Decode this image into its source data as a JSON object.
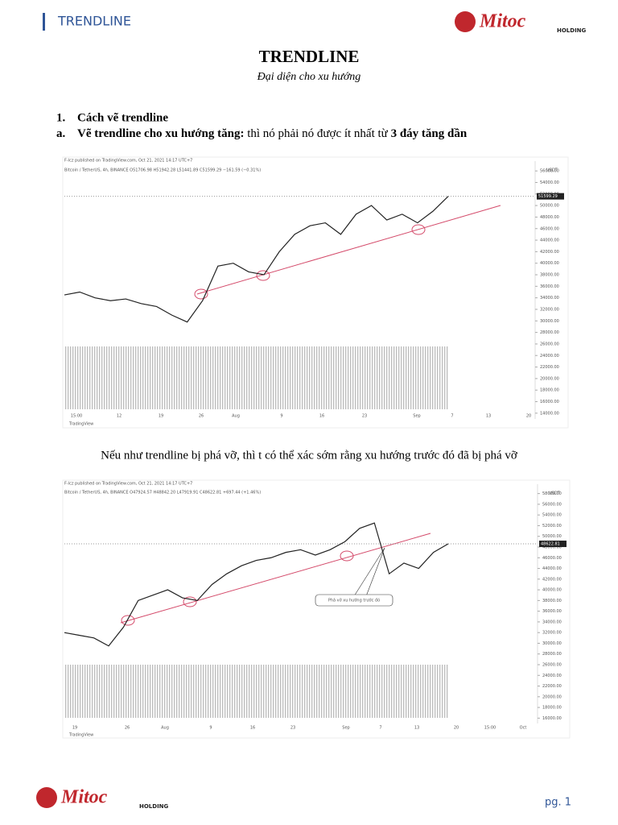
{
  "header": {
    "section": "TRENDLINE",
    "logo": "Mitoc",
    "logo_sub": "HOLDING"
  },
  "title": "TRENDLINE",
  "subtitle": "Đại diện cho xu hướng",
  "heading": {
    "number": "1.",
    "text": "Cách vẽ trendline"
  },
  "item": {
    "letter": "a.",
    "bold": "Vẽ trendline cho xu hướng tăng:",
    "text": " thì nó phải nó được ít nhất từ ",
    "bold2": "3 đáy tăng dần"
  },
  "caption": "Nếu như trendline bị phá vỡ, thì t có thể xác sớm rằng xu hướng trước đó đã bị phá vỡ",
  "charts": [
    {
      "type": "line",
      "published": "F-lcz published on TradingView.com, Oct 21, 2021 14:17 UTC+7",
      "symbol": "Bitcoin / TetherUS, 4h, BINANCE O51706.98 H51942.28 L51441.89 C51599.29 −161.59 (−0.31%)",
      "unit": "USDT",
      "price_label": "51599.29",
      "brand": "TradingView",
      "values": [
        34500,
        35000,
        34000,
        33500,
        33800,
        33000,
        32500,
        31000,
        29800,
        33500,
        39500,
        40000,
        38500,
        38000,
        42000,
        45000,
        46500,
        47000,
        45000,
        48500,
        50000,
        47500,
        48500,
        47000,
        49000,
        51600
      ],
      "ylim": [
        13000,
        57000
      ],
      "yticks": [
        {
          "value": 14000,
          "label": "14000.00"
        },
        {
          "value": 16000,
          "label": "16000.00"
        },
        {
          "value": 18000,
          "label": "18000.00"
        },
        {
          "value": 20000,
          "label": "20000.00"
        },
        {
          "value": 22000,
          "label": "22000.00"
        },
        {
          "value": 24000,
          "label": "24000.00"
        },
        {
          "value": 26000,
          "label": "26000.00"
        },
        {
          "value": 28000,
          "label": "28000.00"
        },
        {
          "value": 30000,
          "label": "30000.00"
        },
        {
          "value": 32000,
          "label": "32000.00"
        },
        {
          "value": 34000,
          "label": "34000.00"
        },
        {
          "value": 36000,
          "label": "36000.00"
        },
        {
          "value": 38000,
          "label": "38000.00"
        },
        {
          "value": 40000,
          "label": "40000.00"
        },
        {
          "value": 42000,
          "label": "42000.00"
        },
        {
          "value": 44000,
          "label": "44000.00"
        },
        {
          "value": 46000,
          "label": "46000.00"
        },
        {
          "value": 48000,
          "label": "48000.00"
        },
        {
          "value": 50000,
          "label": "50000.00"
        },
        {
          "value": 52000,
          "label": "52000.00"
        },
        {
          "value": 54000,
          "label": "54000.00"
        },
        {
          "value": 56000,
          "label": "56000.00"
        }
      ],
      "xlabels": [
        "15:00",
        "12",
        "19",
        "26",
        "Aug",
        "9",
        "16",
        "23",
        "Sep",
        "7",
        "13",
        "20"
      ],
      "color": "#222222"
    },
    {
      "type": "line",
      "published": "F-lcz published on TradingView.com, Oct 21, 2021 14:17 UTC+7",
      "symbol": "Bitcoin / TetherUS, 4h, BINANCE O47924.57 H48842.20 L47919.91 C48622.81 +697.44 (+1.46%)",
      "unit": "USDT",
      "price_label": "48622.81",
      "brand": "TradingView",
      "annotation": "Phá vỡ xu hướng trước đó",
      "values": [
        32000,
        31500,
        31000,
        29500,
        33000,
        38000,
        39000,
        40000,
        38500,
        38000,
        41000,
        43000,
        44500,
        45500,
        46000,
        47000,
        47500,
        46500,
        47500,
        49000,
        51500,
        52500,
        43000,
        45000,
        44000,
        47000,
        48600
      ],
      "ylim": [
        15000,
        59000
      ],
      "yticks": [
        {
          "value": 16000,
          "label": "16000.00"
        },
        {
          "value": 18000,
          "label": "18000.00"
        },
        {
          "value": 20000,
          "label": "20000.00"
        },
        {
          "value": 22000,
          "label": "22000.00"
        },
        {
          "value": 24000,
          "label": "24000.00"
        },
        {
          "value": 26000,
          "label": "26000.00"
        },
        {
          "value": 28000,
          "label": "28000.00"
        },
        {
          "value": 30000,
          "label": "30000.00"
        },
        {
          "value": 32000,
          "label": "32000.00"
        },
        {
          "value": 34000,
          "label": "34000.00"
        },
        {
          "value": 36000,
          "label": "36000.00"
        },
        {
          "value": 38000,
          "label": "38000.00"
        },
        {
          "value": 40000,
          "label": "40000.00"
        },
        {
          "value": 42000,
          "label": "42000.00"
        },
        {
          "value": 44000,
          "label": "44000.00"
        },
        {
          "value": 46000,
          "label": "46000.00"
        },
        {
          "value": 48000,
          "label": "48000.00"
        },
        {
          "value": 50000,
          "label": "50000.00"
        },
        {
          "value": 52000,
          "label": "52000.00"
        },
        {
          "value": 54000,
          "label": "54000.00"
        },
        {
          "value": 56000,
          "label": "56000.00"
        },
        {
          "value": 58000,
          "label": "58000.00"
        }
      ],
      "xlabels": [
        "19",
        "26",
        "Aug",
        "9",
        "16",
        "23",
        "Sep",
        "7",
        "13",
        "20",
        "15:00",
        "Oct"
      ],
      "color": "#222222"
    }
  ],
  "footer": {
    "logo": "Mitoc",
    "logo_sub": "HOLDING",
    "page": "pg. 1"
  }
}
